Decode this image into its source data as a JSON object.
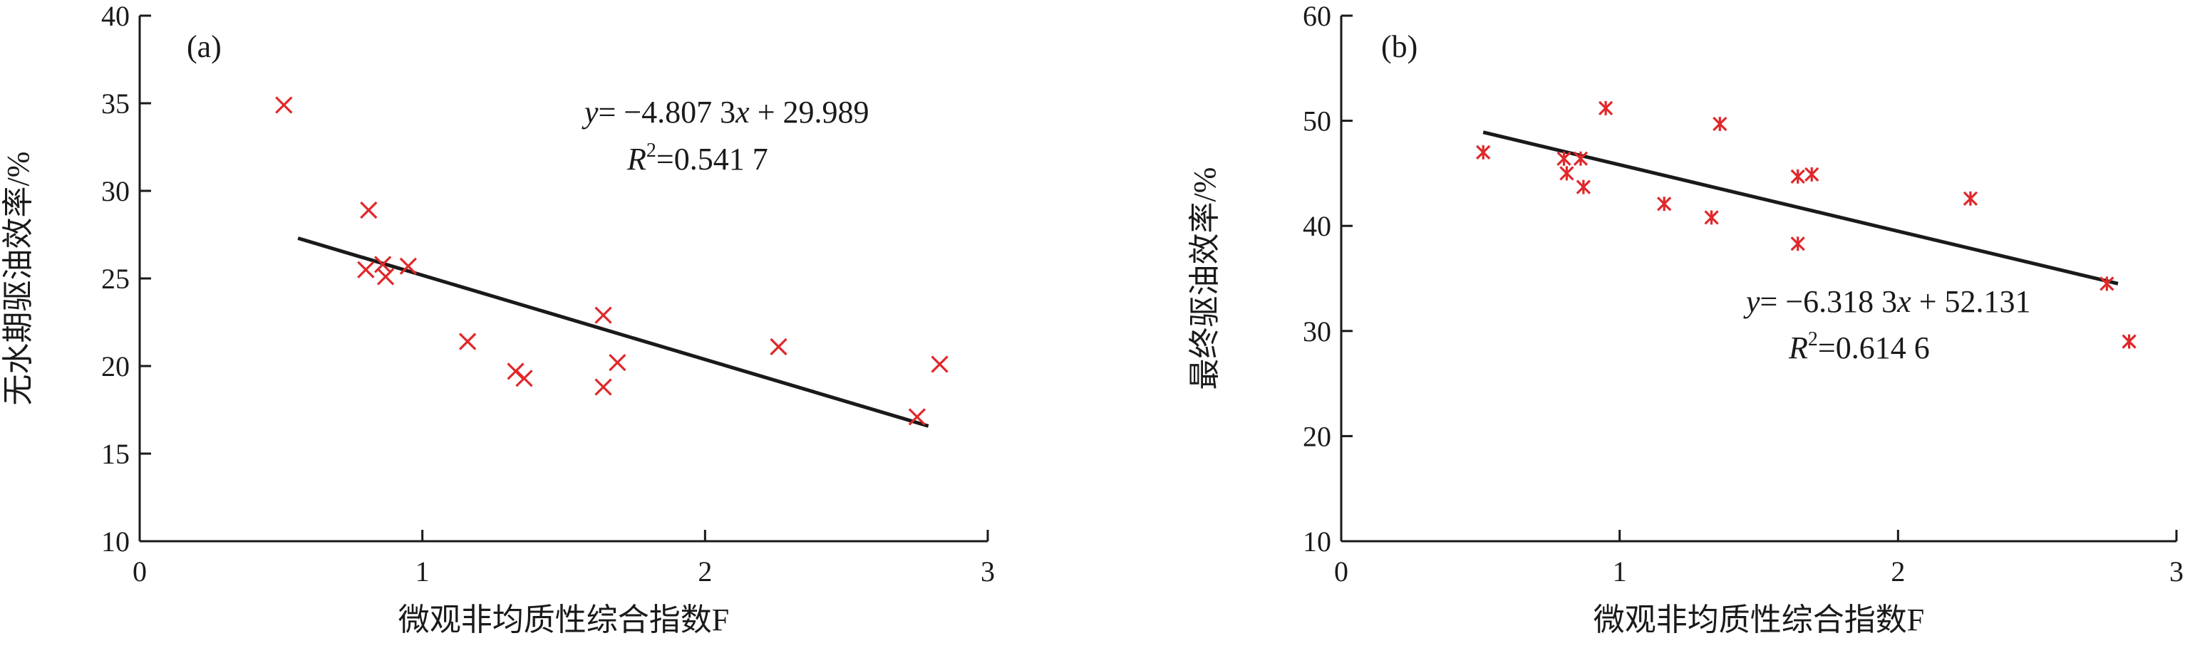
{
  "colors": {
    "marker": "#e0282a",
    "axis": "#1a1a1a",
    "fit_line": "#1a1a1a"
  },
  "chart_data": [
    {
      "type": "scatter",
      "panel_label": "(a)",
      "xlabel": "微观非均质性综合指数F",
      "ylabel": "无水期驱油效率/%",
      "xlim": [
        0,
        3
      ],
      "ylim": [
        10,
        40
      ],
      "xticks": [
        "0",
        "1",
        "2",
        "3"
      ],
      "yticks": [
        "10",
        "15",
        "20",
        "25",
        "30",
        "35",
        "40"
      ],
      "marker": "x",
      "points": [
        {
          "x": 0.51,
          "y": 34.9
        },
        {
          "x": 0.81,
          "y": 28.9
        },
        {
          "x": 0.8,
          "y": 25.5
        },
        {
          "x": 0.86,
          "y": 25.8
        },
        {
          "x": 0.87,
          "y": 25.1
        },
        {
          "x": 0.95,
          "y": 25.7
        },
        {
          "x": 1.16,
          "y": 21.4
        },
        {
          "x": 1.33,
          "y": 19.7
        },
        {
          "x": 1.36,
          "y": 19.3
        },
        {
          "x": 1.64,
          "y": 22.9
        },
        {
          "x": 1.64,
          "y": 18.8
        },
        {
          "x": 1.69,
          "y": 20.2
        },
        {
          "x": 2.26,
          "y": 21.1
        },
        {
          "x": 2.75,
          "y": 17.1
        },
        {
          "x": 2.83,
          "y": 20.1
        }
      ],
      "fit": {
        "slope": -4.8073,
        "intercept": 29.989,
        "x_range": [
          0.56,
          2.79
        ]
      },
      "equation_lines": [
        {
          "italic": "y",
          "rest": "= −4.807 3",
          "italic2": "x",
          "rest2": " + 29.989"
        },
        {
          "italic": "R",
          "sup": "2",
          "rest": "=0.541 7"
        }
      ]
    },
    {
      "type": "scatter",
      "panel_label": "(b)",
      "xlabel": "微观非均质性综合指数F",
      "ylabel": "最终驱油效率/%",
      "xlim": [
        0,
        3
      ],
      "ylim": [
        10,
        60
      ],
      "xticks": [
        "0",
        "1",
        "2",
        "3"
      ],
      "yticks": [
        "10",
        "20",
        "30",
        "40",
        "50",
        "60"
      ],
      "marker": "asterisk",
      "points": [
        {
          "x": 0.51,
          "y": 47.0
        },
        {
          "x": 0.81,
          "y": 45.0
        },
        {
          "x": 0.8,
          "y": 46.4
        },
        {
          "x": 0.86,
          "y": 46.4
        },
        {
          "x": 0.87,
          "y": 43.7
        },
        {
          "x": 0.95,
          "y": 51.2
        },
        {
          "x": 1.16,
          "y": 42.1
        },
        {
          "x": 1.33,
          "y": 40.8
        },
        {
          "x": 1.36,
          "y": 49.7
        },
        {
          "x": 1.64,
          "y": 44.7
        },
        {
          "x": 1.64,
          "y": 38.3
        },
        {
          "x": 1.69,
          "y": 44.9
        },
        {
          "x": 2.26,
          "y": 42.6
        },
        {
          "x": 2.75,
          "y": 34.5
        },
        {
          "x": 2.83,
          "y": 29.0
        }
      ],
      "fit": {
        "slope": -6.3183,
        "intercept": 52.131,
        "x_range": [
          0.51,
          2.79
        ]
      },
      "equation_lines": [
        {
          "italic": "y",
          "rest": "= −6.318 3",
          "italic2": "x",
          "rest2": " + 52.131"
        },
        {
          "italic": "R",
          "sup": "2",
          "rest": "=0.614 6"
        }
      ]
    }
  ]
}
